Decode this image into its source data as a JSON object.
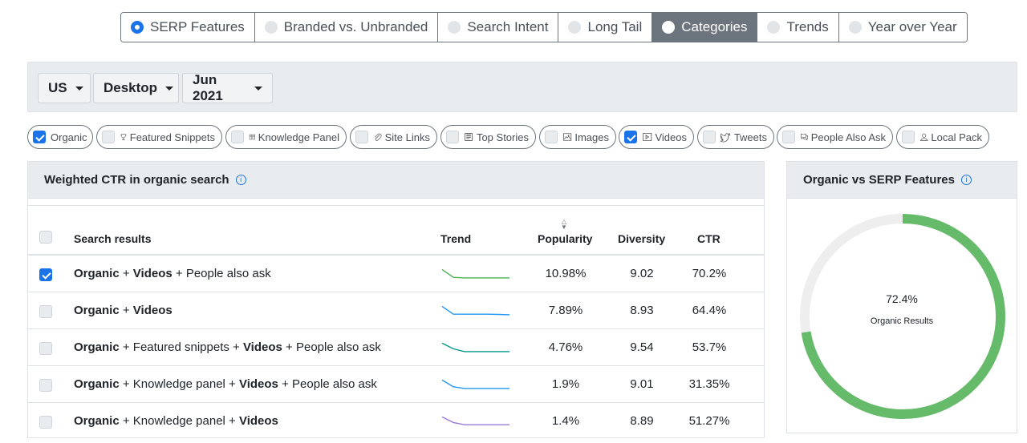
{
  "tabs": [
    {
      "label": "SERP Features",
      "state": "radio-checked"
    },
    {
      "label": "Branded vs. Unbranded",
      "state": ""
    },
    {
      "label": "Search Intent",
      "state": ""
    },
    {
      "label": "Long Tail",
      "state": ""
    },
    {
      "label": "Categories",
      "state": "active"
    },
    {
      "label": "Trends",
      "state": ""
    },
    {
      "label": "Year over Year",
      "state": ""
    }
  ],
  "filters": {
    "country": "US",
    "device": "Desktop",
    "date": "Jun 2021"
  },
  "chips": [
    {
      "label": "Organic",
      "checked": true,
      "icon": "none"
    },
    {
      "label": "Featured Snippets",
      "checked": false,
      "icon": "trophy-icon"
    },
    {
      "label": "Knowledge Panel",
      "checked": false,
      "icon": "book-icon"
    },
    {
      "label": "Site Links",
      "checked": false,
      "icon": "paperclip-icon"
    },
    {
      "label": "Top Stories",
      "checked": false,
      "icon": "newspaper-icon"
    },
    {
      "label": "Images",
      "checked": false,
      "icon": "image-icon"
    },
    {
      "label": "Videos",
      "checked": true,
      "icon": "play-icon"
    },
    {
      "label": "Tweets",
      "checked": false,
      "icon": "twitter-icon"
    },
    {
      "label": "People Also Ask",
      "checked": false,
      "icon": "chat-icon"
    },
    {
      "label": "Local Pack",
      "checked": false,
      "icon": "person-pin-icon"
    }
  ],
  "ctr_panel": {
    "title": "Weighted CTR in organic search",
    "columns": {
      "search_results": "Search results",
      "trend": "Trend",
      "popularity": "Popularity",
      "diversity": "Diversity",
      "ctr": "CTR"
    },
    "rows": [
      {
        "parts": [
          [
            "Organic",
            true
          ],
          [
            " + ",
            false
          ],
          [
            "Videos",
            true
          ],
          [
            " + People also ask",
            false
          ]
        ],
        "checked": true,
        "trend_color": "#4caf50",
        "trend": [
          0.9,
          0.2,
          0.15,
          0.15,
          0.15,
          0.15,
          0.15
        ],
        "popularity": "10.98%",
        "diversity": "9.02",
        "ctr": "70.2%"
      },
      {
        "parts": [
          [
            "Organic",
            true
          ],
          [
            " + ",
            false
          ],
          [
            "Videos",
            true
          ]
        ],
        "checked": false,
        "trend_color": "#2196f3",
        "trend": [
          0.9,
          0.2,
          0.2,
          0.2,
          0.2,
          0.18,
          0.15
        ],
        "popularity": "7.89%",
        "diversity": "8.93",
        "ctr": "64.4%"
      },
      {
        "parts": [
          [
            "Organic",
            true
          ],
          [
            " + Featured snippets + ",
            false
          ],
          [
            "Videos",
            true
          ],
          [
            " + People also ask",
            false
          ]
        ],
        "checked": false,
        "trend_color": "#009688",
        "trend": [
          0.9,
          0.4,
          0.15,
          0.15,
          0.15,
          0.15,
          0.15
        ],
        "popularity": "4.76%",
        "diversity": "9.54",
        "ctr": "53.7%"
      },
      {
        "parts": [
          [
            "Organic",
            true
          ],
          [
            " + Knowledge panel + ",
            false
          ],
          [
            "Videos",
            true
          ],
          [
            " + People also ask",
            false
          ]
        ],
        "checked": false,
        "trend_color": "#2196f3",
        "trend": [
          0.9,
          0.3,
          0.15,
          0.15,
          0.15,
          0.15,
          0.15
        ],
        "popularity": "1.9%",
        "diversity": "9.01",
        "ctr": "31.35%"
      },
      {
        "parts": [
          [
            "Organic",
            true
          ],
          [
            " + Knowledge panel + ",
            false
          ],
          [
            "Videos",
            true
          ]
        ],
        "checked": false,
        "trend_color": "#9c7ad6",
        "trend": [
          0.9,
          0.4,
          0.2,
          0.2,
          0.2,
          0.2,
          0.2
        ],
        "popularity": "1.4%",
        "diversity": "8.89",
        "ctr": "51.27%"
      }
    ]
  },
  "donut_panel": {
    "title": "Organic vs SERP Features",
    "percent_label": "72.4%",
    "percent_value": 72.4,
    "subtitle": "Organic Results",
    "color_fill": "#66bb6a",
    "color_track": "#eeeeee"
  }
}
